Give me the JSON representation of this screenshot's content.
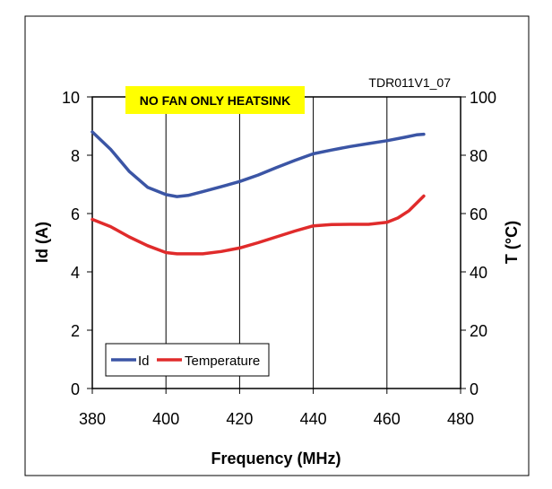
{
  "chart_data": {
    "type": "line",
    "reference_code": "TDR011V1_07",
    "annotation": "NO FAN ONLY HEATSINK",
    "xlabel": "Frequency (MHz)",
    "ylabel_left": "Id (A)",
    "ylabel_right": "T (°C)",
    "xlim": [
      380,
      480
    ],
    "ylim_left": [
      0,
      10
    ],
    "ylim_right": [
      0,
      100
    ],
    "x_ticks": [
      380,
      400,
      420,
      440,
      460,
      480
    ],
    "y_left_ticks": [
      0,
      2,
      4,
      6,
      8,
      10
    ],
    "y_right_ticks": [
      0,
      20,
      40,
      60,
      80,
      100
    ],
    "grid": "vertical",
    "legend_position": "bottom-left",
    "colors": {
      "Id": "#3b55a5",
      "Temperature": "#e02b2b",
      "banner": "#ffff00"
    },
    "series": [
      {
        "name": "Id",
        "axis": "left",
        "x": [
          380,
          385,
          390,
          395,
          400,
          403,
          406,
          410,
          415,
          420,
          425,
          430,
          435,
          440,
          445,
          450,
          455,
          460,
          465,
          468,
          470
        ],
        "values": [
          8.8,
          8.2,
          7.45,
          6.9,
          6.65,
          6.58,
          6.62,
          6.75,
          6.92,
          7.1,
          7.32,
          7.58,
          7.82,
          8.05,
          8.18,
          8.3,
          8.4,
          8.5,
          8.62,
          8.7,
          8.72
        ]
      },
      {
        "name": "Temperature",
        "axis": "right",
        "x": [
          380,
          385,
          390,
          395,
          400,
          403,
          406,
          410,
          415,
          420,
          425,
          430,
          435,
          440,
          445,
          450,
          455,
          460,
          463,
          466,
          470
        ],
        "values": [
          58,
          55.5,
          52,
          49,
          46.6,
          46.2,
          46.2,
          46.2,
          47,
          48.2,
          50,
          52,
          54,
          55.8,
          56.2,
          56.3,
          56.3,
          57,
          58.5,
          61,
          66
        ]
      }
    ]
  }
}
